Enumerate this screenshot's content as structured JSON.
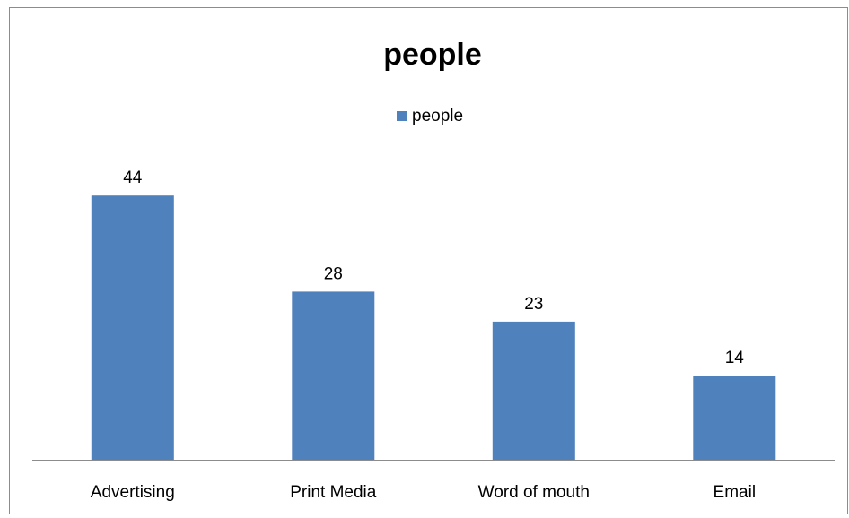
{
  "chart_data": {
    "type": "bar",
    "title": "people",
    "categories": [
      "Advertising",
      "Print Media",
      "Word of mouth",
      "Email"
    ],
    "series": [
      {
        "name": "people",
        "values": [
          44,
          28,
          23,
          14
        ],
        "color": "#4F81BD"
      }
    ],
    "data_labels": true,
    "ylim": [
      0,
      50
    ],
    "grid": false,
    "legend": "top-center",
    "xlabel": "",
    "ylabel": ""
  }
}
